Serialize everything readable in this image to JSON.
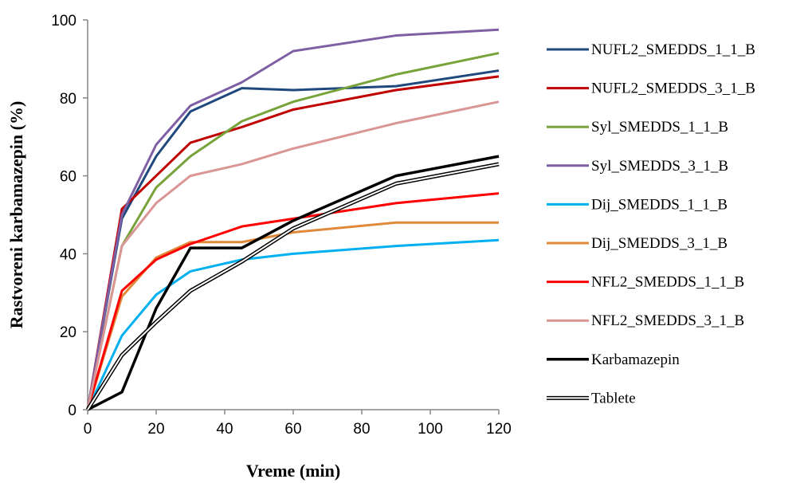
{
  "chart_data": {
    "type": "line",
    "title": "",
    "xlabel": "Vreme (min)",
    "ylabel": "Rastvoreni karbamazepin (%)",
    "xlim": [
      0,
      120
    ],
    "ylim": [
      0,
      100
    ],
    "xticks": [
      0,
      20,
      40,
      60,
      80,
      100,
      120
    ],
    "yticks": [
      0,
      20,
      40,
      60,
      80,
      100
    ],
    "grid": false,
    "legend": "right",
    "x": [
      0,
      10,
      20,
      30,
      45,
      60,
      90,
      120
    ],
    "series": [
      {
        "name": "NUFL2_SMEDDS_1_1_B",
        "color": "#1f497d",
        "style": "solid",
        "values": [
          0,
          49,
          65,
          76.5,
          82.5,
          82,
          83,
          87
        ]
      },
      {
        "name": "NUFL2_SMEDDS_3_1_B",
        "color": "#c00000",
        "style": "solid",
        "values": [
          0,
          51.5,
          60,
          68.5,
          72.5,
          77,
          82,
          85.5
        ]
      },
      {
        "name": "Syl_SMEDDS_1_1_B",
        "color": "#77a33a",
        "style": "solid",
        "values": [
          0,
          42,
          57,
          65,
          74,
          79,
          86,
          91.5
        ]
      },
      {
        "name": "Syl_SMEDDS_3_1_B",
        "color": "#7f5fa3",
        "style": "solid",
        "values": [
          0,
          50,
          68,
          78,
          84,
          92,
          96,
          97.5
        ]
      },
      {
        "name": "Dij_SMEDDS_1_1_B",
        "color": "#00b0f0",
        "style": "solid",
        "values": [
          0,
          19,
          29.5,
          35.5,
          38.5,
          40,
          42,
          43.5
        ]
      },
      {
        "name": "Dij_SMEDDS_3_1_B",
        "color": "#e0893b",
        "style": "solid",
        "values": [
          0,
          29,
          39,
          43,
          43,
          45.5,
          48,
          48
        ]
      },
      {
        "name": "NFL2_SMEDDS_1_1_B",
        "color": "#ff0000",
        "style": "solid",
        "values": [
          0,
          30.5,
          38.5,
          42.5,
          47,
          49,
          53,
          55.5
        ]
      },
      {
        "name": "NFL2_SMEDDS_3_1_B",
        "color": "#d99694",
        "style": "solid",
        "values": [
          0,
          42,
          53,
          60,
          63,
          67,
          73.5,
          79
        ]
      },
      {
        "name": "Karbamazepin",
        "color": "#000000",
        "style": "bold",
        "values": [
          0,
          4.5,
          26,
          41.5,
          41.5,
          48.5,
          60,
          65
        ]
      },
      {
        "name": "Tablete",
        "color": "#000000",
        "style": "double",
        "values": [
          0,
          14,
          22.5,
          30.5,
          38,
          46.5,
          58,
          63
        ]
      }
    ]
  }
}
